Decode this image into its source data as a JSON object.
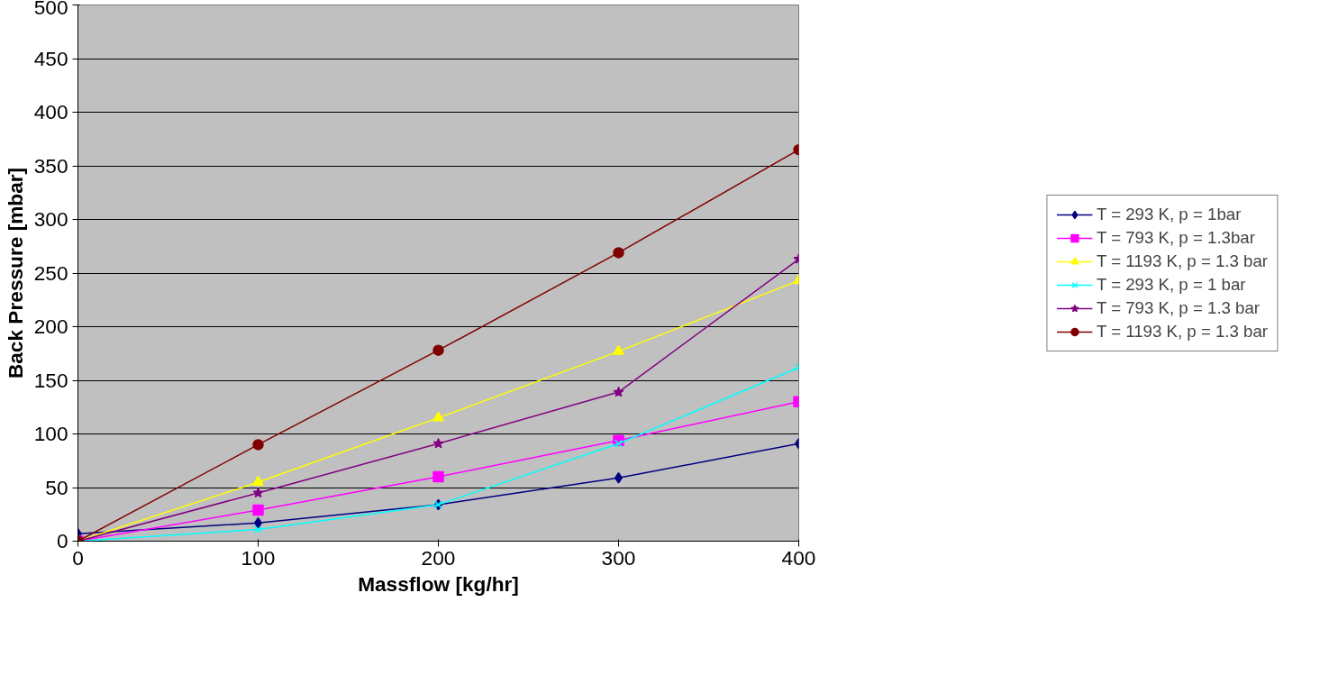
{
  "chart_data": {
    "type": "line",
    "xlabel": "Massflow [kg/hr]",
    "ylabel": "Back Pressure [mbar]",
    "x": [
      0,
      100,
      200,
      300,
      400
    ],
    "xlim": [
      0,
      400
    ],
    "xticks": [
      0,
      100,
      200,
      300,
      400
    ],
    "ylim": [
      0,
      500
    ],
    "yticks": [
      0,
      50,
      100,
      150,
      200,
      250,
      300,
      350,
      400,
      450,
      500
    ],
    "grid": "y",
    "legend": "right",
    "series": [
      {
        "name": "T = 293 K, p = 1bar",
        "color": "#000080",
        "marker": "diamond",
        "values": [
          7,
          17,
          34,
          59,
          91
        ]
      },
      {
        "name": "T = 793 K, p = 1.3bar",
        "color": "#ff00ff",
        "marker": "square",
        "values": [
          0,
          29,
          60,
          94,
          130
        ]
      },
      {
        "name": "T = 1193 K, p = 1.3 bar",
        "color": "#ffff00",
        "marker": "triangle",
        "values": [
          0,
          55,
          115,
          177,
          243
        ]
      },
      {
        "name": "T = 293 K, p = 1 bar",
        "color": "#00ffff",
        "marker": "cross",
        "values": [
          0,
          11,
          34,
          91,
          162
        ]
      },
      {
        "name": "T = 793 K, p = 1.3 bar",
        "color": "#800080",
        "marker": "star",
        "values": [
          0,
          45,
          91,
          139,
          263
        ]
      },
      {
        "name": "T = 1193 K, p = 1.3 bar",
        "color": "#800000",
        "marker": "circle",
        "values": [
          0,
          90,
          178,
          269,
          365
        ]
      }
    ]
  }
}
